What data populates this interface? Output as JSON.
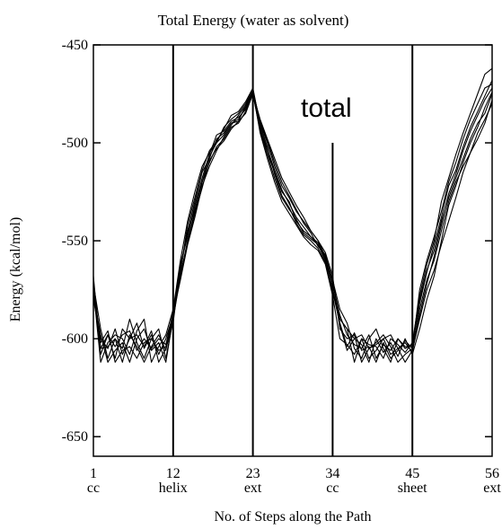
{
  "chart_data": {
    "type": "line",
    "title": "Total Energy (water as solvent)",
    "xlabel": "No. of Steps along the Path",
    "ylabel": "Energy  (kcal/mol)",
    "annotation": "total",
    "xlim": [
      1,
      56
    ],
    "ylim": [
      -660,
      -450
    ],
    "y_ticks": [
      -450,
      -500,
      -550,
      -600,
      -650
    ],
    "x_ticks": [
      {
        "value": 1,
        "label": "1",
        "sublabel": "cc"
      },
      {
        "value": 12,
        "label": "12",
        "sublabel": "helix"
      },
      {
        "value": 23,
        "label": "23",
        "sublabel": "ext"
      },
      {
        "value": 34,
        "label": "34",
        "sublabel": "cc"
      },
      {
        "value": 45,
        "label": "45",
        "sublabel": "sheet"
      },
      {
        "value": 56,
        "label": "56",
        "sublabel": "ext"
      }
    ],
    "x": [
      1,
      2,
      3,
      4,
      5,
      6,
      7,
      8,
      9,
      10,
      11,
      12,
      13,
      14,
      15,
      16,
      17,
      18,
      19,
      20,
      21,
      22,
      23,
      24,
      25,
      26,
      27,
      28,
      29,
      30,
      31,
      32,
      33,
      34,
      35,
      36,
      37,
      38,
      39,
      40,
      41,
      42,
      43,
      44,
      45,
      46,
      47,
      48,
      49,
      50,
      51,
      52,
      53,
      54,
      55,
      56
    ],
    "series": [
      {
        "values": [
          -570,
          -605,
          -598,
          -610,
          -595,
          -600,
          -592,
          -605,
          -598,
          -608,
          -600,
          -588,
          -565,
          -545,
          -530,
          -515,
          -508,
          -498,
          -495,
          -490,
          -488,
          -482,
          -474,
          -492,
          -505,
          -515,
          -525,
          -530,
          -540,
          -545,
          -548,
          -552,
          -560,
          -575,
          -590,
          -595,
          -600,
          -598,
          -605,
          -603,
          -600,
          -608,
          -605,
          -602,
          -607,
          -585,
          -570,
          -560,
          -545,
          -530,
          -520,
          -512,
          -505,
          -498,
          -490,
          -478
        ]
      },
      {
        "values": [
          -575,
          -612,
          -602,
          -598,
          -600,
          -608,
          -596,
          -590,
          -612,
          -604,
          -598,
          -585,
          -560,
          -540,
          -525,
          -512,
          -505,
          -500,
          -492,
          -488,
          -485,
          -480,
          -473,
          -490,
          -500,
          -512,
          -522,
          -528,
          -535,
          -540,
          -545,
          -550,
          -558,
          -570,
          -585,
          -592,
          -605,
          -610,
          -600,
          -595,
          -605,
          -612,
          -600,
          -605,
          -603,
          -580,
          -565,
          -555,
          -540,
          -528,
          -518,
          -508,
          -498,
          -490,
          -485,
          -475
        ]
      },
      {
        "values": [
          -572,
          -595,
          -610,
          -600,
          -605,
          -590,
          -602,
          -610,
          -600,
          -595,
          -610,
          -590,
          -568,
          -550,
          -535,
          -520,
          -510,
          -502,
          -498,
          -492,
          -490,
          -484,
          -475,
          -488,
          -498,
          -508,
          -518,
          -525,
          -532,
          -538,
          -545,
          -550,
          -556,
          -568,
          -595,
          -600,
          -598,
          -612,
          -605,
          -602,
          -598,
          -604,
          -612,
          -608,
          -605,
          -575,
          -560,
          -548,
          -535,
          -520,
          -510,
          -498,
          -488,
          -480,
          -472,
          -470
        ]
      },
      {
        "values": [
          -580,
          -600,
          -605,
          -595,
          -608,
          -600,
          -598,
          -604,
          -596,
          -612,
          -605,
          -592,
          -562,
          -548,
          -532,
          -518,
          -506,
          -496,
          -494,
          -489,
          -487,
          -483,
          -474,
          -495,
          -508,
          -520,
          -530,
          -536,
          -542,
          -548,
          -552,
          -555,
          -562,
          -578,
          -600,
          -603,
          -608,
          -600,
          -610,
          -606,
          -600,
          -598,
          -605,
          -612,
          -606,
          -590,
          -575,
          -565,
          -552,
          -540,
          -528,
          -515,
          -505,
          -495,
          -488,
          -480
        ]
      },
      {
        "values": [
          -568,
          -608,
          -598,
          -604,
          -598,
          -596,
          -606,
          -600,
          -605,
          -600,
          -603,
          -587,
          -570,
          -552,
          -538,
          -522,
          -512,
          -504,
          -497,
          -491,
          -486,
          -481,
          -473,
          -493,
          -503,
          -514,
          -524,
          -531,
          -538,
          -543,
          -548,
          -551,
          -559,
          -572,
          -588,
          -598,
          -603,
          -605,
          -598,
          -610,
          -603,
          -606,
          -600,
          -604,
          -604,
          -582,
          -566,
          -552,
          -538,
          -522,
          -514,
          -502,
          -492,
          -484,
          -476,
          -468
        ]
      },
      {
        "values": [
          -578,
          -598,
          -612,
          -606,
          -602,
          -612,
          -600,
          -595,
          -606,
          -602,
          -612,
          -589,
          -566,
          -542,
          -528,
          -514,
          -504,
          -499,
          -493,
          -486,
          -484,
          -479,
          -472,
          -491,
          -502,
          -516,
          -527,
          -533,
          -541,
          -547,
          -550,
          -554,
          -561,
          -574,
          -593,
          -606,
          -600,
          -603,
          -612,
          -600,
          -607,
          -602,
          -609,
          -600,
          -608,
          -595,
          -580,
          -568,
          -550,
          -532,
          -522,
          -510,
          -500,
          -492,
          -482,
          -474
        ]
      },
      {
        "values": [
          -574,
          -602,
          -596,
          -612,
          -606,
          -604,
          -610,
          -602,
          -600,
          -606,
          -604,
          -586,
          -563,
          -546,
          -534,
          -520,
          -507,
          -500,
          -496,
          -490,
          -489,
          -481,
          -474,
          -489,
          -499,
          -510,
          -520,
          -527,
          -534,
          -541,
          -546,
          -553,
          -557,
          -571,
          -590,
          -595,
          -612,
          -600,
          -603,
          -604,
          -610,
          -600,
          -603,
          -607,
          -602,
          -578,
          -562,
          -550,
          -530,
          -518,
          -506,
          -495,
          -485,
          -475,
          -465,
          -462
        ]
      },
      {
        "values": [
          -576,
          -605,
          -604,
          -600,
          -612,
          -598,
          -604,
          -612,
          -604,
          -598,
          -606,
          -588,
          -567,
          -551,
          -536,
          -523,
          -509,
          -503,
          -499,
          -493,
          -489,
          -485,
          -475,
          -494,
          -506,
          -518,
          -528,
          -534,
          -539,
          -546,
          -549,
          -552,
          -560,
          -576,
          -592,
          -604,
          -597,
          -606,
          -604,
          -612,
          -602,
          -610,
          -606,
          -601,
          -605,
          -588,
          -572,
          -558,
          -542,
          -526,
          -516,
          -504,
          -494,
          -486,
          -478,
          -472
        ]
      }
    ]
  }
}
